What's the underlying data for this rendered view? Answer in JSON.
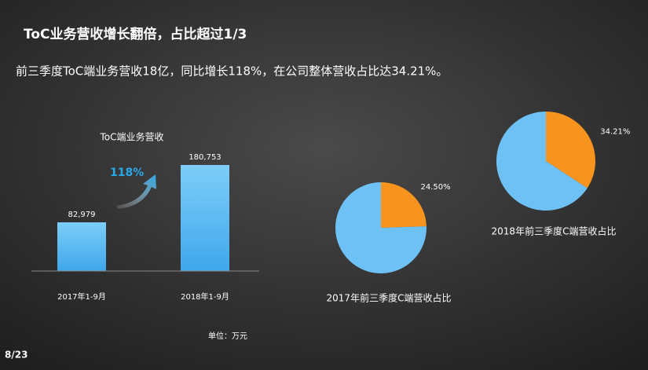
{
  "title": "ToC业务营收增长翻倍，占比超过1/3",
  "subtitle": "前三季度ToC端业务营收18亿，同比增长118%，在公司整体营收占比达34.21%。",
  "page_number": "8/23",
  "chart_data": [
    {
      "type": "bar",
      "title": "ToC端业务营收",
      "categories": [
        "2017年1-9月",
        "2018年1-9月"
      ],
      "values": [
        82979,
        180753
      ],
      "value_labels": [
        "82,979",
        "180,753"
      ],
      "color": "#5bb8f2",
      "annotation": "118%",
      "unit_label": "单位：万元"
    },
    {
      "type": "pie",
      "title": "2017年前三季度C端营收占比",
      "values": [
        24.5,
        75.5
      ],
      "value_labels": [
        "24.50%",
        null
      ],
      "colors": [
        "#f7941d",
        "#6ec1f5"
      ]
    },
    {
      "type": "pie",
      "title": "2018年前三季度C端营收占比",
      "values": [
        34.21,
        65.79
      ],
      "value_labels": [
        "34.21%",
        null
      ],
      "colors": [
        "#f7941d",
        "#6ec1f5"
      ]
    }
  ]
}
